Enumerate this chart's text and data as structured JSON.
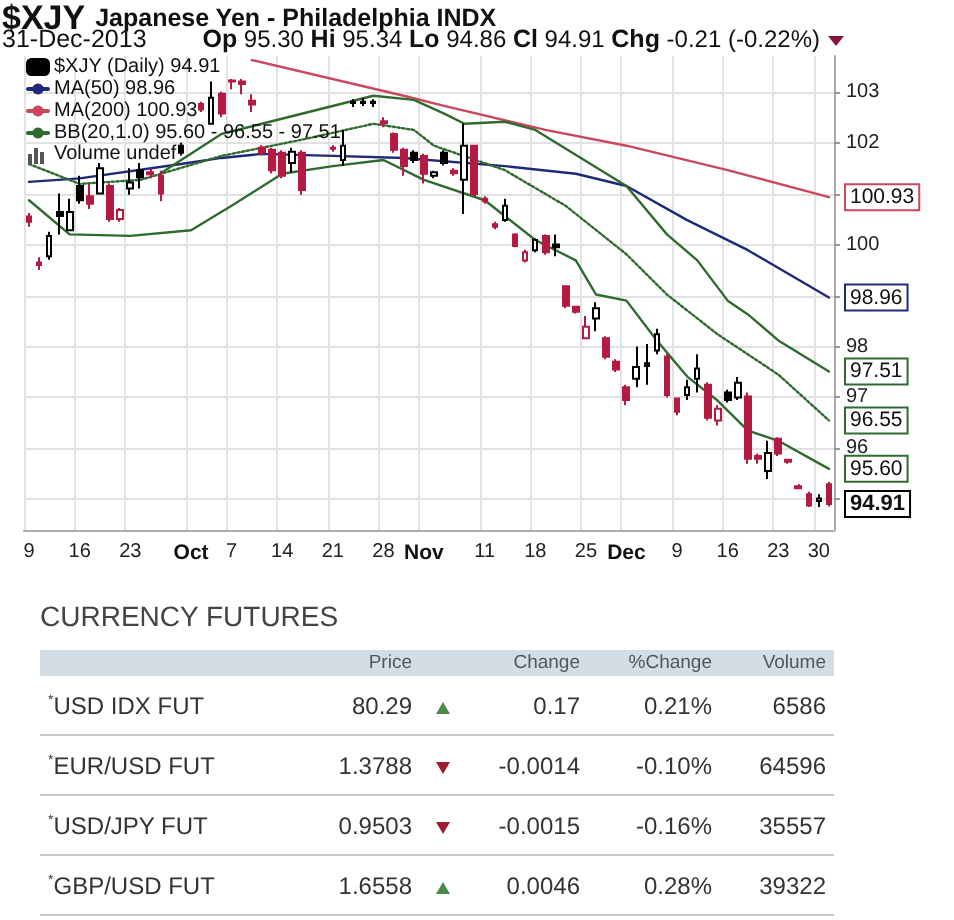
{
  "chart_data": [
    {
      "type": "candlestick",
      "title": "$XJY Japanese Yen - Philadelphia INDX",
      "subtitle": "31-Dec-2013",
      "annotations": [
        "Op 95.30 Hi 95.34 Lo 94.86 Cl 94.91 Chg -0.21 (-0.22%)",
        "Volume undef"
      ],
      "categories": [
        "9",
        null,
        null,
        null,
        null,
        "16",
        null,
        null,
        null,
        null,
        "23",
        null,
        null,
        null,
        null,
        null,
        "Oct",
        null,
        null,
        null,
        "7",
        null,
        null,
        null,
        null,
        "14",
        null,
        null,
        null,
        null,
        "21",
        null,
        null,
        null,
        null,
        "28",
        null,
        null,
        null,
        "Nov",
        null,
        null,
        null,
        null,
        null,
        "11",
        null,
        null,
        null,
        null,
        "18",
        null,
        null,
        null,
        null,
        "25",
        null,
        null,
        null,
        "Dec",
        null,
        null,
        null,
        null,
        "9",
        null,
        null,
        null,
        null,
        "16",
        null,
        null,
        null,
        null,
        "23",
        null,
        null,
        null,
        "30",
        null
      ],
      "ylim": [
        94.4,
        103.7
      ],
      "yticks": [
        {
          "value": 95,
          "label": null
        },
        96,
        97,
        98,
        {
          "value": 99,
          "label": null
        },
        100,
        {
          "value": 101,
          "label": null
        },
        102,
        103
      ],
      "grid": true,
      "legend": "top left",
      "marker": "none",
      "series": [
        {
          "type": "candlestick",
          "name": "$XJY (Daily) 94.91",
          "ohlc": [
            [
              100.55,
              100.62,
              100.35,
              100.45
            ],
            [
              99.65,
              99.75,
              99.5,
              99.6
            ],
            [
              99.77,
              100.25,
              99.7,
              100.17
            ],
            [
              100.64,
              101.0,
              100.2,
              100.56
            ],
            [
              100.28,
              100.9,
              100.28,
              100.64
            ],
            [
              101.15,
              101.35,
              100.8,
              100.87
            ],
            [
              100.95,
              101.2,
              100.7,
              100.8
            ],
            [
              101.0,
              101.6,
              101.0,
              101.5
            ],
            [
              101.15,
              101.2,
              100.45,
              100.5
            ],
            [
              100.5,
              100.72,
              100.45,
              100.68
            ],
            [
              101.1,
              101.5,
              100.98,
              101.22
            ],
            [
              101.46,
              101.6,
              101.1,
              101.32
            ],
            [
              101.42,
              101.5,
              101.3,
              101.38
            ],
            [
              101.35,
              101.45,
              100.85,
              101.0
            ],
            null,
            [
              101.94,
              102.0,
              101.75,
              101.8
            ],
            null,
            [
              102.76,
              102.8,
              102.6,
              102.65
            ],
            [
              102.37,
              103.2,
              102.35,
              102.88
            ],
            [
              102.96,
              103.0,
              102.5,
              102.57
            ],
            [
              103.2,
              103.25,
              103.05,
              103.22
            ],
            [
              103.2,
              103.25,
              102.95,
              103.15
            ],
            [
              102.82,
              102.95,
              102.6,
              102.75
            ],
            [
              101.9,
              101.95,
              101.75,
              101.8
            ],
            [
              101.86,
              101.9,
              101.4,
              101.46
            ],
            [
              101.8,
              101.85,
              101.3,
              101.35
            ],
            [
              101.6,
              101.9,
              101.42,
              101.82
            ],
            [
              101.8,
              101.85,
              100.98,
              101.07
            ],
            null,
            null,
            [
              101.9,
              101.95,
              101.82,
              101.88
            ],
            [
              101.66,
              102.25,
              101.54,
              101.94
            ],
            [
              102.78,
              102.85,
              102.7,
              102.8
            ],
            [
              102.8,
              102.88,
              102.72,
              102.78
            ],
            [
              102.78,
              102.85,
              102.7,
              102.8
            ],
            [
              102.42,
              102.5,
              102.3,
              102.38
            ],
            [
              102.17,
              102.2,
              101.8,
              101.86
            ],
            [
              101.86,
              101.9,
              101.35,
              101.54
            ],
            [
              101.8,
              101.85,
              101.6,
              101.66
            ],
            [
              101.74,
              101.78,
              101.2,
              101.39
            ],
            [
              101.35,
              101.45,
              101.3,
              101.42
            ],
            [
              101.8,
              101.85,
              101.55,
              101.6
            ],
            [
              101.45,
              101.5,
              101.35,
              101.4
            ],
            [
              101.27,
              102.37,
              100.6,
              101.94
            ],
            [
              101.94,
              101.95,
              100.95,
              100.99
            ],
            [
              100.9,
              100.95,
              100.8,
              100.85
            ],
            [
              100.4,
              100.45,
              100.3,
              100.35
            ],
            [
              100.48,
              100.9,
              100.45,
              100.76
            ],
            [
              100.2,
              100.22,
              99.95,
              99.97
            ],
            [
              99.69,
              99.9,
              99.65,
              99.85
            ],
            [
              99.89,
              100.12,
              99.85,
              100.09
            ],
            [
              100.17,
              100.2,
              99.8,
              99.85
            ],
            [
              100.0,
              100.2,
              99.77,
              99.95
            ],
            [
              99.18,
              99.2,
              98.75,
              98.8
            ],
            [
              98.78,
              98.8,
              98.65,
              98.68
            ],
            [
              98.16,
              98.6,
              98.15,
              98.39
            ],
            [
              98.55,
              98.87,
              98.3,
              98.75
            ],
            [
              98.16,
              98.2,
              97.75,
              97.8
            ],
            [
              97.7,
              97.75,
              97.5,
              97.55
            ],
            [
              97.2,
              97.25,
              96.85,
              96.95
            ],
            [
              97.37,
              98.0,
              97.2,
              97.6
            ],
            [
              97.67,
              98.05,
              97.25,
              97.62
            ],
            [
              97.92,
              98.35,
              97.85,
              98.24
            ],
            [
              97.8,
              97.85,
              97.0,
              97.05
            ],
            [
              96.98,
              97.0,
              96.65,
              96.72
            ],
            [
              97.05,
              97.35,
              96.95,
              97.2
            ],
            [
              97.37,
              97.85,
              97.1,
              97.57
            ],
            [
              97.25,
              97.3,
              96.55,
              96.6
            ],
            [
              96.55,
              96.85,
              96.45,
              96.78
            ],
            [
              97.1,
              97.15,
              96.9,
              96.95
            ],
            [
              97.0,
              97.4,
              96.95,
              97.29
            ],
            [
              97.02,
              97.1,
              95.7,
              95.8
            ],
            [
              95.85,
              95.9,
              95.7,
              95.8
            ],
            [
              95.56,
              96.15,
              95.4,
              95.91
            ],
            [
              96.19,
              96.22,
              95.85,
              95.9
            ],
            [
              95.78,
              95.8,
              95.7,
              95.74
            ],
            [
              95.26,
              95.3,
              95.2,
              95.22
            ],
            [
              95.1,
              95.15,
              94.85,
              94.88
            ],
            [
              94.97,
              95.1,
              94.85,
              95.02
            ],
            [
              95.3,
              95.34,
              94.86,
              94.91
            ]
          ],
          "value_labels": [
            null,
            null,
            null,
            null,
            null,
            null,
            null,
            null,
            null,
            null,
            null,
            null,
            null,
            null,
            null,
            null,
            null,
            null,
            null,
            null,
            null,
            null,
            null,
            null,
            null,
            null,
            null,
            null,
            null,
            null,
            null,
            null,
            null,
            null,
            null,
            null,
            null,
            null,
            null,
            null,
            null,
            null,
            null,
            null,
            null,
            null,
            null,
            null,
            null,
            null,
            null,
            null,
            null,
            null,
            null,
            null,
            null,
            null,
            null,
            null,
            null,
            null,
            null,
            null,
            null,
            null,
            null,
            null,
            null,
            null,
            null,
            null,
            null,
            null,
            null,
            null,
            null,
            null,
            null,
            "94.91"
          ],
          "colors": [
            "#b31b43",
            "#b31b43",
            "#000000",
            "#000000",
            "#000000",
            "#000000",
            "#b31b43",
            "#000000",
            "#b31b43",
            "#b31b43",
            "#000000",
            "#000000",
            "#b31b43",
            "#b31b43",
            null,
            "#000000",
            null,
            "#b31b43",
            "#000000",
            "#b31b43",
            "#b31b43",
            "#b31b43",
            "#b31b43",
            "#b31b43",
            "#b31b43",
            "#b31b43",
            "#000000",
            "#b31b43",
            null,
            null,
            "#b31b43",
            "#000000",
            "#000000",
            "#000000",
            "#000000",
            "#b31b43",
            "#b31b43",
            "#b31b43",
            "#000000",
            "#b31b43",
            "#000000",
            "#000000",
            "#b31b43",
            "#000000",
            "#b31b43",
            "#b31b43",
            "#b31b43",
            "#000000",
            "#b31b43",
            "#b31b43",
            "#000000",
            "#b31b43",
            "#000000",
            "#b31b43",
            "#b31b43",
            "#b31b43",
            "#000000",
            "#b31b43",
            "#b31b43",
            "#b31b43",
            "#000000",
            "#000000",
            "#000000",
            "#b31b43",
            "#b31b43",
            "#000000",
            "#000000",
            "#b31b43",
            "#b31b43",
            "#000000",
            "#000000",
            "#b31b43",
            "#b31b43",
            "#000000",
            "#b31b43",
            "#b31b43",
            "#b31b43",
            "#b31b43",
            "#000000",
            "#b31b43"
          ]
        },
        {
          "type": "line",
          "name": "MA(50) 98.96",
          "color": "#1e2a78",
          "line_style": "solid",
          "value_labels": [
            null,
            null,
            null,
            null,
            null,
            null,
            null,
            null,
            null,
            null,
            null,
            null,
            null,
            null,
            null,
            null,
            null,
            null,
            null,
            null,
            null,
            null,
            null,
            null,
            null,
            null,
            null,
            null,
            null,
            null,
            null,
            null,
            null,
            null,
            null,
            null,
            null,
            null,
            null,
            null,
            null,
            null,
            null,
            null,
            null,
            null,
            null,
            null,
            null,
            null,
            null,
            null,
            null,
            null,
            null,
            null,
            null,
            null,
            null,
            null,
            null,
            null,
            null,
            null,
            null,
            null,
            null,
            null,
            null,
            null,
            null,
            null,
            null,
            null,
            null,
            null,
            null,
            null,
            null,
            "98.96"
          ],
          "values": [
            101.23,
            null,
            null,
            null,
            null,
            101.3,
            null,
            null,
            null,
            null,
            null,
            null,
            null,
            null,
            null,
            101.58,
            null,
            null,
            null,
            101.7,
            null,
            null,
            null,
            101.78,
            null,
            null,
            null,
            null,
            null,
            null,
            101.74,
            null,
            null,
            null,
            null,
            null,
            null,
            101.7,
            null,
            null,
            null,
            null,
            null,
            null,
            null,
            null,
            null,
            101.54,
            null,
            null,
            null,
            null,
            null,
            null,
            101.39,
            null,
            null,
            null,
            null,
            101.15,
            null,
            null,
            null,
            null,
            null,
            100.48,
            null,
            null,
            null,
            null,
            null,
            99.89,
            null,
            null,
            null,
            null,
            null,
            null,
            null,
            98.96
          ]
        },
        {
          "type": "line",
          "name": "MA(200) 100.93",
          "color": "#c9485c",
          "line_style": "solid",
          "value_labels": [
            null,
            null,
            null,
            null,
            null,
            null,
            null,
            null,
            null,
            null,
            null,
            null,
            null,
            null,
            null,
            null,
            null,
            null,
            null,
            null,
            null,
            null,
            null,
            null,
            null,
            null,
            null,
            null,
            null,
            null,
            null,
            null,
            null,
            null,
            null,
            null,
            null,
            null,
            null,
            null,
            null,
            null,
            null,
            null,
            null,
            null,
            null,
            null,
            null,
            null,
            null,
            null,
            null,
            null,
            null,
            null,
            null,
            null,
            null,
            null,
            null,
            null,
            null,
            null,
            null,
            null,
            null,
            null,
            null,
            null,
            null,
            null,
            null,
            null,
            null,
            null,
            null,
            null,
            null,
            "100.93"
          ],
          "values": [
            null,
            null,
            null,
            null,
            null,
            null,
            null,
            null,
            null,
            null,
            null,
            null,
            null,
            null,
            null,
            null,
            null,
            null,
            null,
            null,
            null,
            null,
            103.62,
            null,
            null,
            null,
            null,
            null,
            null,
            null,
            null,
            null,
            null,
            null,
            null,
            null,
            null,
            102.92,
            null,
            null,
            null,
            102.72,
            null,
            null,
            null,
            null,
            null,
            null,
            null,
            null,
            null,
            102.25,
            null,
            null,
            null,
            null,
            null,
            null,
            null,
            101.94,
            null,
            null,
            null,
            null,
            null,
            null,
            null,
            null,
            null,
            101.46,
            null,
            null,
            null,
            null,
            null,
            null,
            null,
            null,
            null,
            100.93
          ]
        },
        {
          "type": "line",
          "name": "BB(20,1.0) 95.60 - 96.55 - 97.51",
          "color": "#2f6b2f",
          "line_style": "solid",
          "value_labels": [
            null,
            null,
            null,
            null,
            null,
            null,
            null,
            null,
            null,
            null,
            null,
            null,
            null,
            null,
            null,
            null,
            null,
            null,
            null,
            null,
            null,
            null,
            null,
            null,
            null,
            null,
            null,
            null,
            null,
            null,
            null,
            null,
            null,
            null,
            null,
            null,
            null,
            null,
            null,
            null,
            null,
            null,
            null,
            null,
            null,
            null,
            null,
            null,
            null,
            null,
            null,
            null,
            null,
            null,
            null,
            null,
            null,
            null,
            null,
            null,
            null,
            null,
            null,
            null,
            null,
            null,
            null,
            null,
            null,
            null,
            null,
            null,
            null,
            null,
            null,
            null,
            null,
            null,
            null,
            "97.51"
          ],
          "values": [
            null,
            null,
            null,
            null,
            null,
            null,
            null,
            null,
            null,
            null,
            null,
            null,
            null,
            101.4,
            null,
            null,
            null,
            null,
            null,
            102.17,
            null,
            null,
            null,
            102.37,
            null,
            null,
            null,
            null,
            null,
            null,
            null,
            null,
            null,
            null,
            102.92,
            null,
            null,
            null,
            102.84,
            null,
            null,
            102.57,
            null,
            102.37,
            null,
            null,
            null,
            102.41,
            null,
            null,
            102.25,
            null,
            null,
            null,
            null,
            null,
            null,
            null,
            null,
            101.15,
            null,
            null,
            null,
            100.2,
            null,
            null,
            99.69,
            null,
            null,
            98.9,
            null,
            98.63,
            null,
            null,
            98.12,
            null,
            null,
            null,
            null,
            97.51
          ]
        },
        {
          "type": "line",
          "color": "#2f6b2f",
          "line_style": "dotted",
          "value_labels": [
            null,
            null,
            null,
            null,
            null,
            null,
            null,
            null,
            null,
            null,
            null,
            null,
            null,
            null,
            null,
            null,
            null,
            null,
            null,
            null,
            null,
            null,
            null,
            null,
            null,
            null,
            null,
            null,
            null,
            null,
            null,
            null,
            null,
            null,
            null,
            null,
            null,
            null,
            null,
            null,
            null,
            null,
            null,
            null,
            null,
            null,
            null,
            null,
            null,
            null,
            null,
            null,
            null,
            null,
            null,
            null,
            null,
            null,
            null,
            null,
            null,
            null,
            null,
            null,
            null,
            null,
            null,
            null,
            null,
            null,
            null,
            null,
            null,
            null,
            null,
            null,
            null,
            null,
            null,
            "96.55"
          ],
          "values": [
            101.58,
            null,
            null,
            null,
            null,
            101.19,
            null,
            null,
            null,
            null,
            null,
            101.27,
            null,
            null,
            null,
            null,
            null,
            null,
            null,
            101.74,
            null,
            null,
            null,
            null,
            null,
            null,
            null,
            102.06,
            null,
            null,
            null,
            null,
            null,
            null,
            102.37,
            null,
            null,
            null,
            102.25,
            null,
            101.94,
            null,
            null,
            null,
            null,
            null,
            null,
            101.46,
            null,
            null,
            null,
            null,
            null,
            100.76,
            null,
            null,
            null,
            null,
            null,
            99.81,
            null,
            null,
            null,
            99.02,
            null,
            null,
            null,
            null,
            98.24,
            null,
            null,
            null,
            null,
            null,
            97.45,
            null,
            null,
            null,
            null,
            96.55
          ]
        },
        {
          "type": "line",
          "color": "#2f6b2f",
          "line_style": "solid",
          "value_labels": [
            null,
            null,
            null,
            null,
            null,
            null,
            null,
            null,
            null,
            null,
            null,
            null,
            null,
            null,
            null,
            null,
            null,
            null,
            null,
            null,
            null,
            null,
            null,
            null,
            null,
            null,
            null,
            null,
            null,
            null,
            null,
            null,
            null,
            null,
            null,
            null,
            null,
            null,
            null,
            null,
            null,
            null,
            null,
            null,
            null,
            null,
            null,
            null,
            null,
            null,
            null,
            null,
            null,
            null,
            null,
            null,
            null,
            null,
            null,
            null,
            null,
            null,
            null,
            null,
            null,
            null,
            null,
            null,
            null,
            null,
            null,
            null,
            null,
            null,
            null,
            null,
            null,
            null,
            null,
            "95.60"
          ],
          "values": [
            100.87,
            null,
            null,
            null,
            100.2,
            null,
            null,
            null,
            null,
            null,
            100.17,
            null,
            null,
            null,
            null,
            null,
            100.28,
            null,
            null,
            null,
            100.76,
            null,
            null,
            null,
            null,
            101.39,
            null,
            null,
            null,
            null,
            101.54,
            null,
            null,
            null,
            null,
            101.66,
            null,
            null,
            null,
            101.27,
            null,
            null,
            null,
            null,
            null,
            100.87,
            null,
            null,
            null,
            null,
            100.09,
            null,
            null,
            null,
            99.69,
            null,
            99.02,
            null,
            null,
            98.9,
            null,
            null,
            98.12,
            null,
            null,
            97.41,
            null,
            null,
            96.94,
            null,
            null,
            96.35,
            null,
            null,
            96.15,
            null,
            null,
            null,
            null,
            95.6
          ]
        }
      ]
    },
    {
      "type": "other",
      "title": "CURRENCY FUTURES",
      "categories": [
        "Price",
        "Change",
        "%Change",
        "Volume"
      ],
      "y_categories": [
        "$^{*}$USD IDX FUT",
        "$^{*}$EUR/USD FUT",
        "$^{*}$USD/JPY FUT",
        "$^{*}$GBP/USD FUT"
      ],
      "cell_labels": [
        [
          "80.29",
          "0.17",
          "0.21%",
          "6586"
        ],
        [
          "1.3788",
          "-0.0014",
          "-0.10%",
          "64596"
        ],
        [
          "0.9503",
          "-0.0015",
          "-0.16%",
          "35557"
        ],
        [
          "1.6558",
          "0.0046",
          "0.28%",
          "39322"
        ]
      ]
    }
  ]
}
